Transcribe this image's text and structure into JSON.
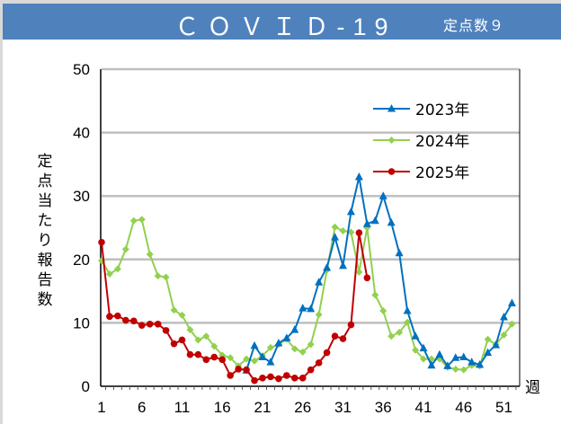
{
  "header": {
    "title": "ＣＯＶＩＤ-19",
    "sites": "定点数９"
  },
  "chart_data": {
    "type": "line",
    "title": "COVID-19",
    "xlabel": "週",
    "ylabel": "定点当たり報告数",
    "ylim": [
      0,
      50
    ],
    "yticks": [
      0,
      10,
      20,
      30,
      40,
      50
    ],
    "xticks": [
      1,
      6,
      11,
      16,
      21,
      26,
      31,
      36,
      41,
      46,
      51
    ],
    "xlim": [
      1,
      52
    ],
    "grid": true,
    "legend": "top-right",
    "series": [
      {
        "name": "2023年",
        "color": "#0070c0",
        "marker": "triangle",
        "start_week": 19,
        "values": [
          2.5,
          6.4,
          4.6,
          3.8,
          6.8,
          7.6,
          8.9,
          12.3,
          12.2,
          16.4,
          18.7,
          23.5,
          19.0,
          27.5,
          33.0,
          25.6,
          26.1,
          30.0,
          25.8,
          21.0,
          11.9,
          7.9,
          6.0,
          3.3,
          5.0,
          3.2,
          4.5,
          4.6,
          3.8,
          3.4,
          5.3,
          6.5,
          10.9,
          13.1
        ]
      },
      {
        "name": "2024年",
        "color": "#92d050",
        "marker": "diamond",
        "start_week": 1,
        "values": [
          19.8,
          17.7,
          18.5,
          21.6,
          26.1,
          26.3,
          20.8,
          17.4,
          17.2,
          12.0,
          11.2,
          8.9,
          7.3,
          7.9,
          6.3,
          4.9,
          4.5,
          3.2,
          4.3,
          4.0,
          4.8,
          6.1,
          6.6,
          7.4,
          5.9,
          5.4,
          6.6,
          11.3,
          18.3,
          25.1,
          24.5,
          24.3,
          18.0,
          25.0,
          14.4,
          11.9,
          7.9,
          8.5,
          10.1,
          5.7,
          4.3,
          4.3,
          4.3,
          3.0,
          2.7,
          2.6,
          3.3,
          3.2,
          7.4,
          6.6,
          8.1,
          9.8
        ]
      },
      {
        "name": "2025年",
        "color": "#c00000",
        "marker": "circle",
        "start_week": 1,
        "values": [
          22.7,
          11.0,
          11.1,
          10.4,
          10.3,
          9.6,
          9.8,
          9.8,
          8.8,
          6.7,
          7.3,
          5.0,
          5.0,
          4.2,
          4.6,
          4.2,
          1.7,
          2.7,
          2.6,
          0.9,
          1.3,
          1.5,
          1.2,
          1.7,
          1.3,
          1.3,
          2.6,
          3.7,
          5.3,
          7.9,
          7.5,
          9.7,
          24.2,
          17.1
        ]
      }
    ]
  }
}
